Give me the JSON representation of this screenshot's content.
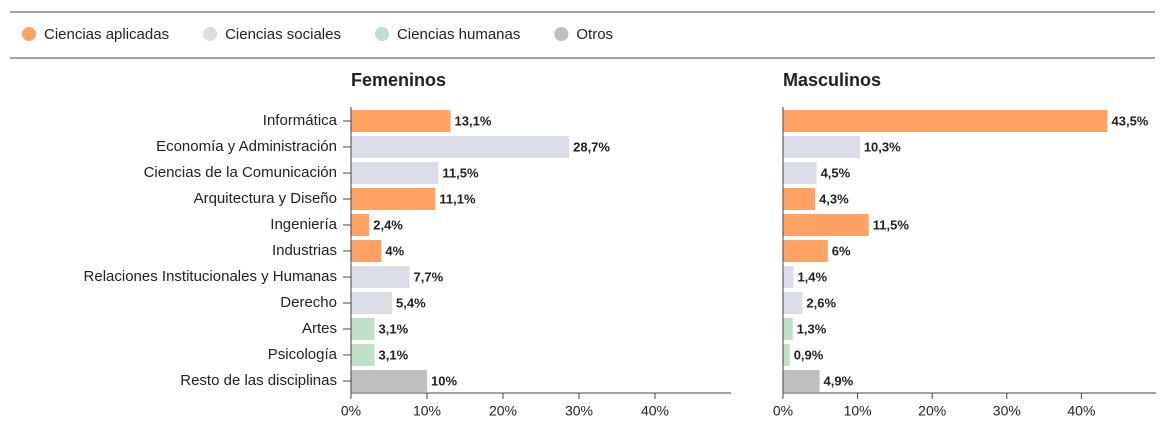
{
  "legend": [
    {
      "name": "Ciencias aplicadas",
      "color": "#ffa263"
    },
    {
      "name": "Ciencias sociales",
      "color": "#dcdce8"
    },
    {
      "name": "Ciencias humanas",
      "color": "#bfe0c9"
    },
    {
      "name": "Otros",
      "color": "#c0c0c0"
    }
  ],
  "categories": [
    "Informática",
    "Economía y Administración",
    "Ciencias de la Comunicación",
    "Arquitectura y Diseño",
    "Ingeniería",
    "Industrias",
    "Relaciones Institucionales y Humanas",
    "Derecho",
    "Artes",
    "Psicología",
    "Resto de las disciplinas"
  ],
  "chart_data": [
    {
      "type": "bar",
      "orientation": "horizontal",
      "title": "Femeninos",
      "values": [
        13.1,
        28.7,
        11.5,
        11.1,
        2.4,
        4,
        7.7,
        5.4,
        3.1,
        3.1,
        10
      ],
      "value_labels": [
        "13,1%",
        "28,7%",
        "11,5%",
        "11,1%",
        "2,4%",
        "4%",
        "7,7%",
        "5,4%",
        "3,1%",
        "3,1%",
        "10%"
      ],
      "colors": [
        "#ffa263",
        "#dcdce8",
        "#dcdce8",
        "#ffa263",
        "#ffa263",
        "#ffa263",
        "#dcdce8",
        "#dcdce8",
        "#bfe0c9",
        "#bfe0c9",
        "#c0c0c0"
      ],
      "xlim": [
        0,
        50
      ],
      "xticks": [
        {
          "value": 0,
          "label": "0%"
        },
        {
          "value": 10,
          "label": "10%"
        },
        {
          "value": 20,
          "label": "20%"
        },
        {
          "value": 30,
          "label": "30%"
        },
        {
          "value": 40,
          "label": "40%"
        }
      ]
    },
    {
      "type": "bar",
      "orientation": "horizontal",
      "title": "Masculinos",
      "values": [
        43.5,
        10.3,
        4.5,
        4.3,
        11.5,
        6,
        1.4,
        2.6,
        1.3,
        0.9,
        4.9
      ],
      "value_labels": [
        "43,5%",
        "10,3%",
        "4,5%",
        "4,3%",
        "11,5%",
        "6%",
        "1,4%",
        "2,6%",
        "1,3%",
        "0,9%",
        "4,9%"
      ],
      "colors": [
        "#ffa263",
        "#dcdce8",
        "#dcdce8",
        "#ffa263",
        "#ffa263",
        "#ffa263",
        "#dcdce8",
        "#dcdce8",
        "#bfe0c9",
        "#bfe0c9",
        "#c0c0c0"
      ],
      "xlim": [
        0,
        50
      ],
      "xticks": [
        {
          "value": 0,
          "label": "0%"
        },
        {
          "value": 10,
          "label": "10%"
        },
        {
          "value": 20,
          "label": "20%"
        },
        {
          "value": 30,
          "label": "30%"
        },
        {
          "value": 40,
          "label": "40%"
        }
      ]
    }
  ]
}
